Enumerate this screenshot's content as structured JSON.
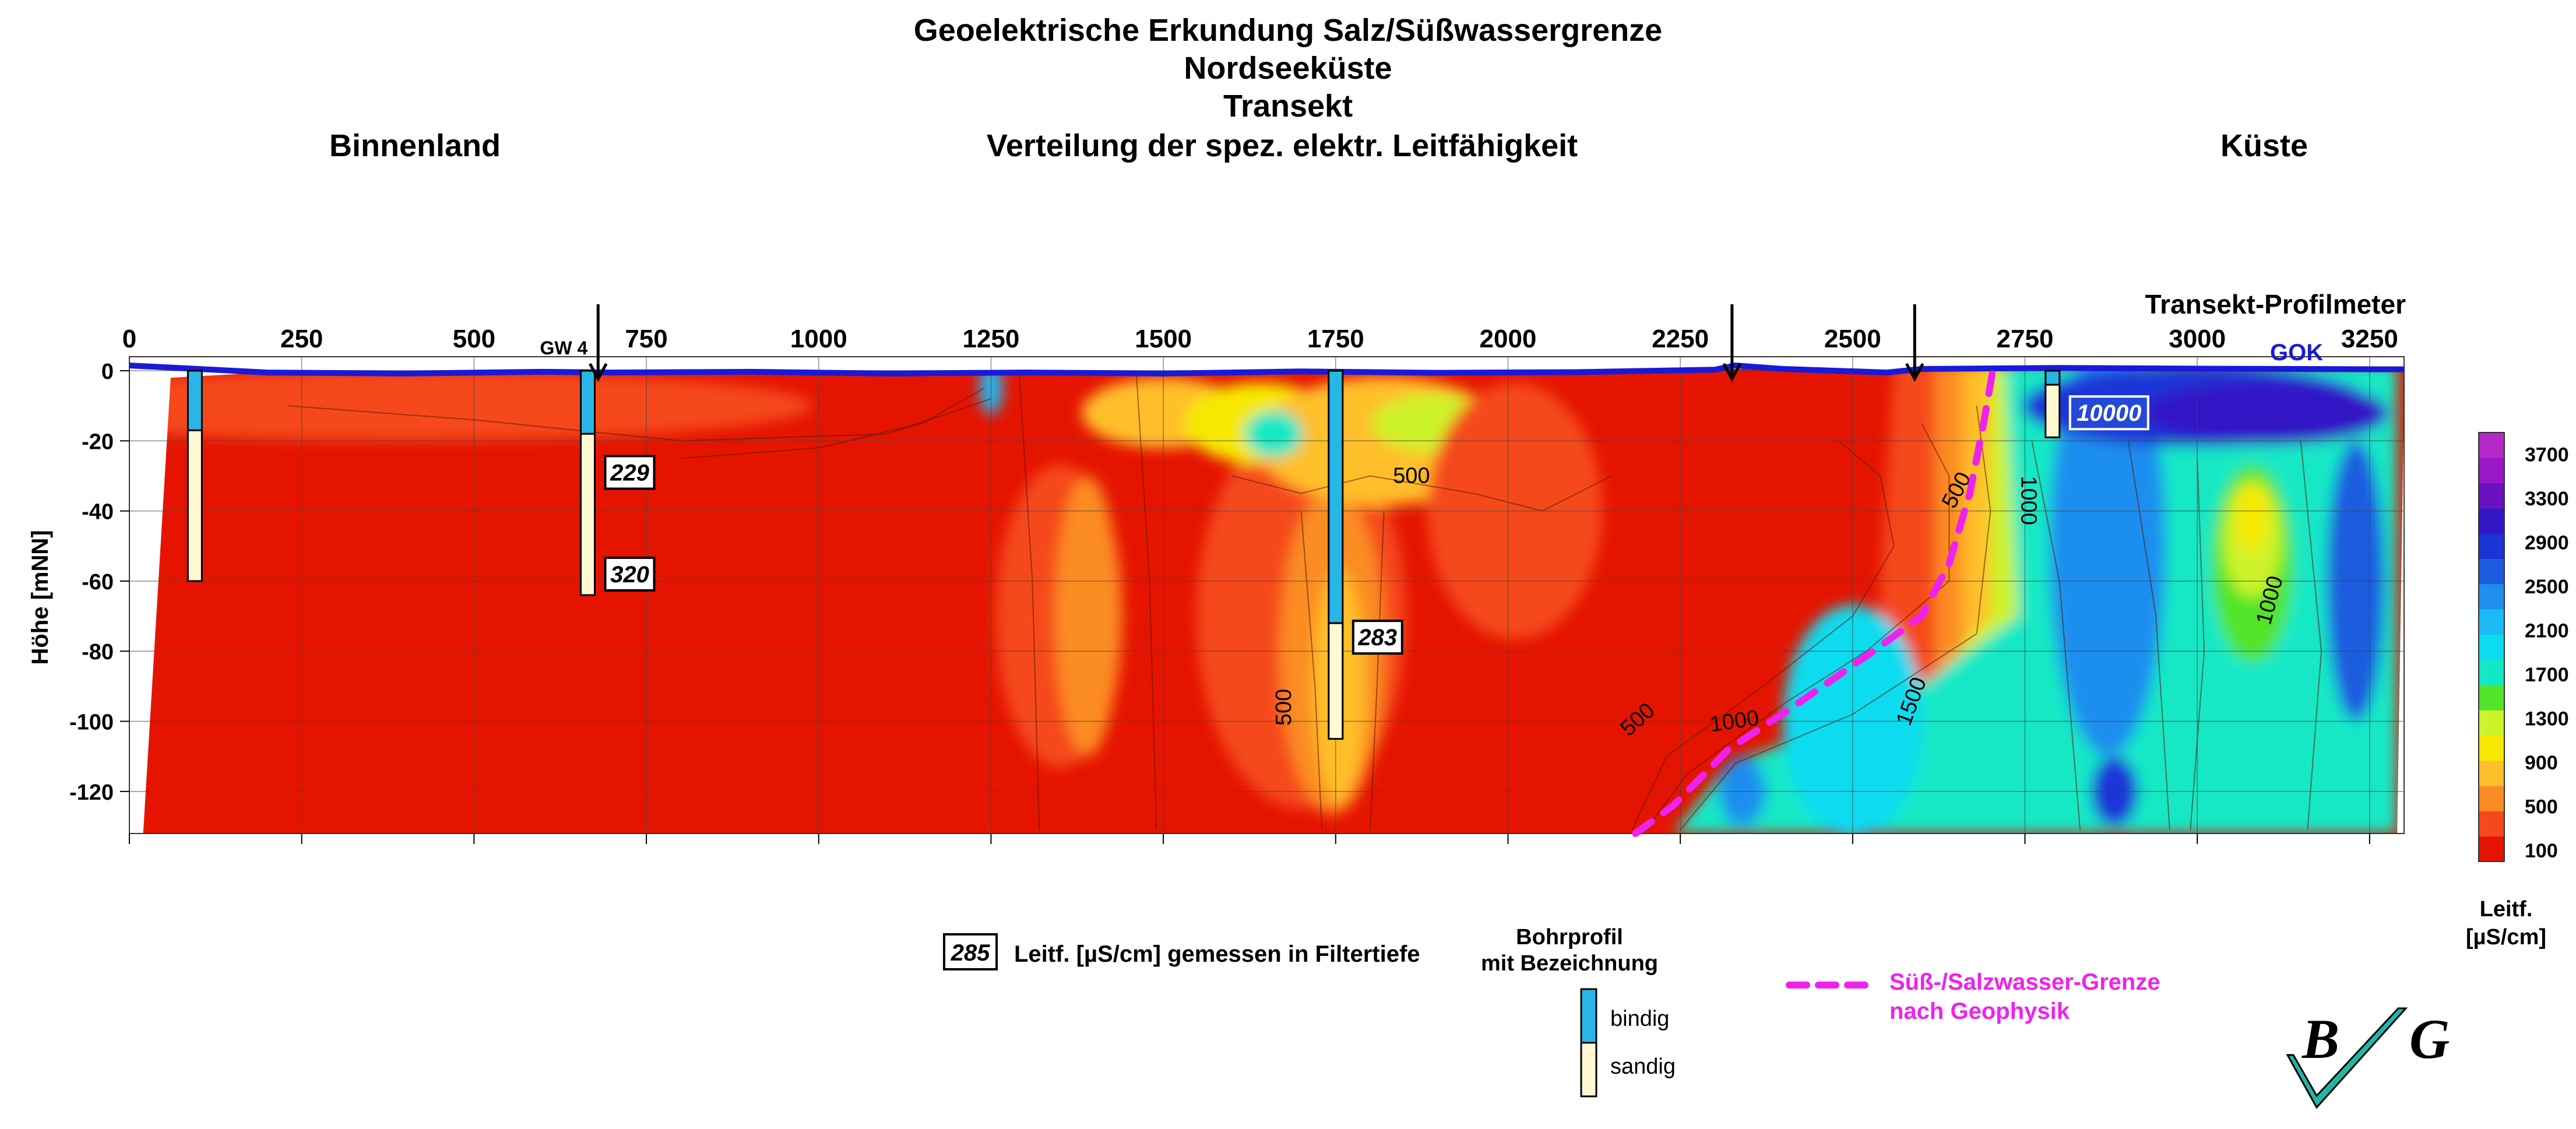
{
  "title_lines": [
    "Geoelektrische Erkundung Salz/Süßwassergrenze",
    "Nordseeküste",
    "Transekt",
    "Verteilung der spez. elektr. Leitfähigkeit"
  ],
  "left_heading": "Binnenland",
  "right_heading": "Küste",
  "colors": {
    "gok_line": "#1a1ad6",
    "boundary_line": "#ee22ee",
    "bindig": "#29b6e6",
    "sandig": "#fff8d2",
    "box_blue_fill": "#2448d8"
  },
  "chart_data": {
    "type": "heatmap",
    "xlabel": "Transekt-Profilmeter",
    "ylabel": "Höhe [mNN]",
    "x_ticks": [
      "0",
      "250",
      "500",
      "750",
      "1000",
      "1250",
      "1500",
      "1750",
      "2000",
      "2250",
      "2500",
      "2750",
      "3000",
      "3250"
    ],
    "y_ticks": [
      "0",
      "-20",
      "-40",
      "-60",
      "-80",
      "-100",
      "-120"
    ],
    "xlim": [
      0,
      3300
    ],
    "ylim": [
      -132,
      4
    ],
    "grid": true,
    "surface_label": "GOK",
    "surface_profile": [
      [
        0,
        1.5
      ],
      [
        200,
        -0.5
      ],
      [
        400,
        -0.8
      ],
      [
        600,
        -0.3
      ],
      [
        700,
        -0.5
      ],
      [
        900,
        -0.3
      ],
      [
        1100,
        -0.8
      ],
      [
        1300,
        -0.5
      ],
      [
        1500,
        -0.8
      ],
      [
        1700,
        -0.2
      ],
      [
        1900,
        -0.6
      ],
      [
        2100,
        -0.4
      ],
      [
        2300,
        0.3
      ],
      [
        2330,
        1.5
      ],
      [
        2400,
        0.5
      ],
      [
        2550,
        -0.5
      ],
      [
        2600,
        0.5
      ],
      [
        2800,
        0.8
      ],
      [
        3000,
        0.6
      ],
      [
        3300,
        0.4
      ]
    ],
    "colorbar": {
      "title_line1": "Leitf.",
      "title_line2": "[µS/cm]",
      "tick_labels": [
        "100",
        "500",
        "900",
        "1300",
        "1700",
        "2100",
        "2500",
        "2900",
        "3300",
        "3700"
      ],
      "range": [
        0,
        3900
      ],
      "colors": [
        "#e51400",
        "#f5481c",
        "#fb8c24",
        "#ffbf2a",
        "#f6e800",
        "#cdf32a",
        "#52e42a",
        "#12e8c6",
        "#0cdcf0",
        "#1bb9f5",
        "#1f8eef",
        "#1e5cdf",
        "#1c34d7",
        "#3216c6",
        "#6a12c2",
        "#9a18c8",
        "#b428c8"
      ]
    },
    "contour_labels": [
      "500",
      "500",
      "500",
      "500",
      "1000",
      "1000",
      "1000",
      "1500"
    ],
    "arrows": [
      {
        "x": 680,
        "label": "GW 4"
      },
      {
        "x": 2325,
        "label": ""
      },
      {
        "x": 2590,
        "label": ""
      }
    ],
    "boreholes": [
      {
        "x": 95,
        "bindig_bottom": -17,
        "sandig_bottom": -60
      },
      {
        "x": 665,
        "bindig_bottom": -18,
        "sandig_bottom": -64
      },
      {
        "x": 1750,
        "bindig_bottom": -72,
        "sandig_bottom": -105
      },
      {
        "x": 2790,
        "bindig_bottom": -4,
        "sandig_bottom": -19
      }
    ],
    "measurements": [
      {
        "x": 665,
        "depth": -29,
        "value": "229"
      },
      {
        "x": 665,
        "depth": -58,
        "value": "320"
      },
      {
        "x": 1750,
        "depth": -76,
        "value": "283"
      },
      {
        "x": 2790,
        "depth": -12,
        "value": "10000"
      }
    ],
    "boundary_line": [
      [
        2185,
        -132
      ],
      [
        2240,
        -124
      ],
      [
        2320,
        -108
      ],
      [
        2420,
        -95
      ],
      [
        2530,
        -80
      ],
      [
        2600,
        -70
      ],
      [
        2640,
        -55
      ],
      [
        2670,
        -35
      ],
      [
        2690,
        -15
      ],
      [
        2705,
        2
      ]
    ]
  },
  "legend": {
    "measurement_sample": "285",
    "measurement_text": "Leitf. [µS/cm] gemessen in Filtertiefe",
    "borehole_title_line1": "Bohrprofil",
    "borehole_title_line2": "mit Bezeichnung",
    "bindig": "bindig",
    "sandig": "sandig",
    "boundary_line1": "Süß-/Salzwasser-Grenze",
    "boundary_line2": "nach Geophysik"
  },
  "logo": "B G"
}
